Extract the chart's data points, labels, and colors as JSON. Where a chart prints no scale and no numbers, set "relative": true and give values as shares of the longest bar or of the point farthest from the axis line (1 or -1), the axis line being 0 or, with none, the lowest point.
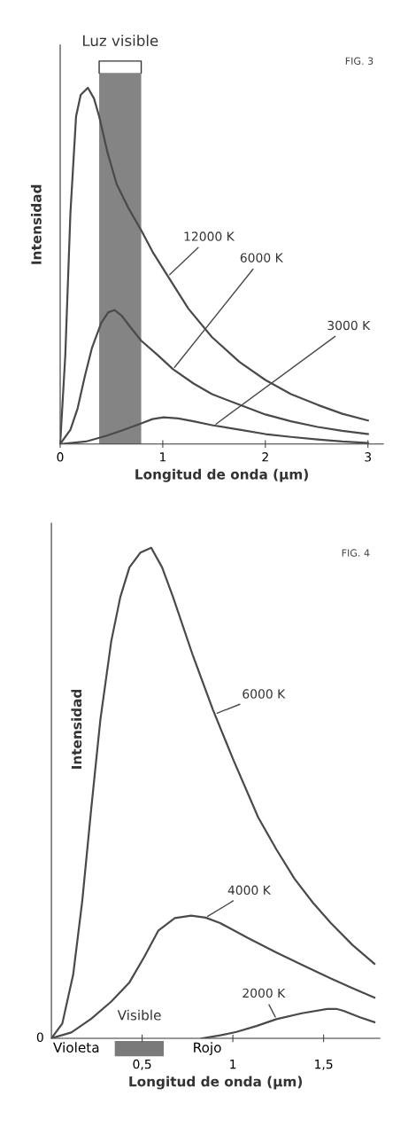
{
  "chart_data": [
    {
      "type": "line",
      "relative": true,
      "xlabel": "Longitud de onda (µm)",
      "ylabel": "Intensidad",
      "xlim": [
        0,
        3.15
      ],
      "xticks": [
        0,
        1,
        2,
        3
      ],
      "annotations": [
        "FIG. 3"
      ],
      "bands": [
        {
          "axis": "x",
          "from": 0.38,
          "to": 0.79,
          "label": "Luz visible",
          "color": "#6e6e6e"
        }
      ],
      "series": [
        {
          "name": "12000 K",
          "color": "#4a4a4a",
          "x": [
            0,
            0.05,
            0.1,
            0.155,
            0.2,
            0.27,
            0.33,
            0.38,
            0.46,
            0.55,
            0.67,
            0.79,
            0.9,
            1.03,
            1.25,
            1.48,
            1.75,
            2.0,
            2.25,
            2.51,
            2.75,
            3.0
          ],
          "values": [
            0,
            0.25,
            0.65,
            0.92,
            0.98,
            1.0,
            0.97,
            0.92,
            0.82,
            0.73,
            0.66,
            0.6,
            0.54,
            0.48,
            0.38,
            0.3,
            0.23,
            0.18,
            0.14,
            0.11,
            0.085,
            0.066
          ]
        },
        {
          "name": "6000 K",
          "color": "#4a4a4a",
          "x": [
            0,
            0.1,
            0.17,
            0.24,
            0.31,
            0.4,
            0.47,
            0.53,
            0.6,
            0.68,
            0.79,
            0.95,
            1.1,
            1.3,
            1.48,
            1.75,
            2.0,
            2.25,
            2.51,
            2.75,
            3.0
          ],
          "values": [
            0,
            0.04,
            0.1,
            0.19,
            0.27,
            0.34,
            0.37,
            0.376,
            0.36,
            0.33,
            0.29,
            0.25,
            0.21,
            0.17,
            0.14,
            0.11,
            0.083,
            0.064,
            0.048,
            0.037,
            0.028
          ]
        },
        {
          "name": "3000 K",
          "color": "#4a4a4a",
          "x": [
            0,
            0.25,
            0.45,
            0.62,
            0.79,
            0.9,
            1.01,
            1.15,
            1.3,
            1.48,
            1.75,
            2.0,
            2.25,
            2.51,
            2.75,
            3.0
          ],
          "values": [
            0,
            0.007,
            0.023,
            0.04,
            0.058,
            0.07,
            0.075,
            0.072,
            0.064,
            0.053,
            0.04,
            0.028,
            0.02,
            0.013,
            0.007,
            0.003
          ]
        }
      ]
    },
    {
      "type": "line",
      "relative": true,
      "xlabel": "Longitud de onda (µm)",
      "ylabel": "Intensidad",
      "xlim": [
        0,
        1.81
      ],
      "xticks": [
        {
          "value": 0.5,
          "label": "0,5"
        },
        1,
        {
          "value": 1.5,
          "label": "1,5"
        }
      ],
      "annotations": [
        "FIG. 4",
        {
          "text": "0",
          "x": 0,
          "y": 0
        },
        "Violeta",
        "Rojo",
        "Visible"
      ],
      "series": [
        {
          "name": "6000 K",
          "color": "#4a4a4a",
          "x": [
            0,
            0.06,
            0.12,
            0.17,
            0.22,
            0.27,
            0.33,
            0.38,
            0.43,
            0.49,
            0.55,
            0.61,
            0.67,
            0.78,
            0.89,
            1.0,
            1.14,
            1.24,
            1.34,
            1.44,
            1.54,
            1.66,
            1.78
          ],
          "values": [
            0,
            0.03,
            0.13,
            0.28,
            0.47,
            0.65,
            0.81,
            0.9,
            0.96,
            0.99,
            1.0,
            0.96,
            0.9,
            0.78,
            0.67,
            0.57,
            0.45,
            0.385,
            0.325,
            0.277,
            0.235,
            0.19,
            0.152
          ]
        },
        {
          "name": "4000 K",
          "color": "#4a4a4a",
          "x": [
            0,
            0.11,
            0.22,
            0.33,
            0.43,
            0.51,
            0.59,
            0.68,
            0.77,
            0.85,
            0.93,
            1.08,
            1.24,
            1.39,
            1.54,
            1.66,
            1.78
          ],
          "values": [
            0,
            0.012,
            0.04,
            0.075,
            0.114,
            0.165,
            0.22,
            0.245,
            0.25,
            0.246,
            0.235,
            0.205,
            0.175,
            0.148,
            0.122,
            0.102,
            0.083
          ]
        },
        {
          "name": "2000 K",
          "color": "#4a4a4a",
          "x": [
            0.83,
            0.93,
            1.02,
            1.13,
            1.24,
            1.38,
            1.52,
            1.57,
            1.61,
            1.7,
            1.78
          ],
          "values": [
            0,
            0.006,
            0.013,
            0.025,
            0.039,
            0.051,
            0.06,
            0.06,
            0.056,
            0.043,
            0.033
          ]
        }
      ]
    }
  ]
}
